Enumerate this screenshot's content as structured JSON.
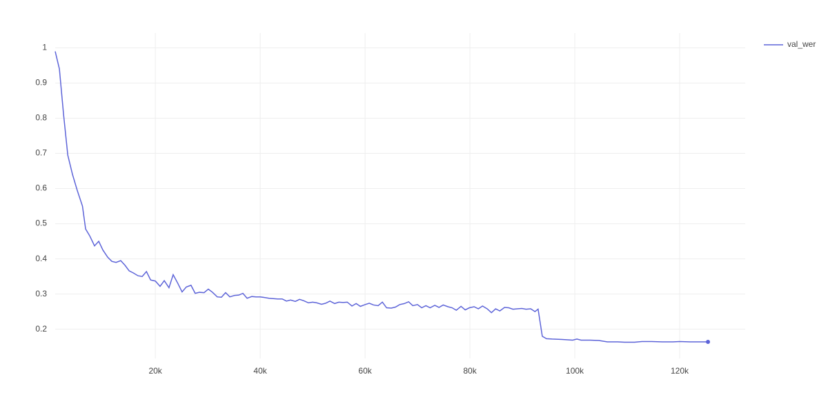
{
  "chart_data": {
    "type": "line",
    "x": [
      900,
      1700,
      2500,
      3300,
      4200,
      5100,
      6100,
      6700,
      7500,
      8400,
      9200,
      10000,
      10900,
      11700,
      12500,
      13400,
      14200,
      15000,
      15800,
      16700,
      17500,
      18300,
      19100,
      20000,
      20900,
      21700,
      22600,
      23400,
      24300,
      25100,
      25900,
      26800,
      27600,
      28400,
      29300,
      30100,
      30900,
      31800,
      32600,
      33400,
      34200,
      35100,
      35900,
      36700,
      37500,
      38400,
      39200,
      40000,
      40900,
      41700,
      42500,
      43300,
      44200,
      45000,
      45800,
      46700,
      47500,
      48300,
      49200,
      50000,
      50800,
      51700,
      52500,
      53300,
      54200,
      55000,
      55800,
      56600,
      57500,
      58300,
      59100,
      60000,
      60800,
      61600,
      62500,
      63300,
      64100,
      65000,
      65800,
      66600,
      67500,
      68300,
      69100,
      70000,
      70800,
      71600,
      72400,
      73300,
      74100,
      74900,
      75800,
      76600,
      77400,
      78300,
      79100,
      79900,
      80800,
      81600,
      82400,
      83300,
      84100,
      84900,
      85700,
      86600,
      87400,
      88200,
      89100,
      89900,
      90700,
      91600,
      92400,
      93000,
      93800,
      94600,
      95700,
      97600,
      99600,
      100400,
      101200,
      102900,
      104600,
      106200,
      108200,
      109500,
      111400,
      112800,
      114700,
      116700,
      118700,
      120000,
      122000,
      123300,
      125400
    ],
    "series": [
      {
        "name": "val_wer",
        "color": "#5c63d8",
        "values": [
          0.99,
          0.94,
          0.81,
          0.695,
          0.64,
          0.595,
          0.55,
          0.485,
          0.465,
          0.437,
          0.45,
          0.425,
          0.405,
          0.393,
          0.39,
          0.395,
          0.382,
          0.366,
          0.36,
          0.352,
          0.35,
          0.364,
          0.34,
          0.337,
          0.322,
          0.338,
          0.318,
          0.355,
          0.33,
          0.306,
          0.32,
          0.325,
          0.302,
          0.305,
          0.304,
          0.314,
          0.305,
          0.292,
          0.291,
          0.304,
          0.292,
          0.296,
          0.297,
          0.302,
          0.288,
          0.293,
          0.292,
          0.292,
          0.29,
          0.288,
          0.287,
          0.286,
          0.286,
          0.28,
          0.283,
          0.279,
          0.285,
          0.281,
          0.275,
          0.277,
          0.275,
          0.271,
          0.274,
          0.28,
          0.273,
          0.277,
          0.276,
          0.277,
          0.266,
          0.273,
          0.265,
          0.27,
          0.274,
          0.269,
          0.267,
          0.277,
          0.261,
          0.26,
          0.263,
          0.27,
          0.273,
          0.278,
          0.267,
          0.27,
          0.261,
          0.267,
          0.261,
          0.268,
          0.262,
          0.269,
          0.264,
          0.261,
          0.254,
          0.265,
          0.255,
          0.261,
          0.264,
          0.258,
          0.266,
          0.258,
          0.247,
          0.258,
          0.252,
          0.262,
          0.261,
          0.257,
          0.258,
          0.259,
          0.257,
          0.258,
          0.25,
          0.257,
          0.18,
          0.173,
          0.172,
          0.171,
          0.169,
          0.172,
          0.169,
          0.169,
          0.168,
          0.164,
          0.164,
          0.163,
          0.163,
          0.165,
          0.165,
          0.164,
          0.164,
          0.165,
          0.164,
          0.164,
          0.164
        ]
      }
    ],
    "xlim": [
      900,
      132500
    ],
    "xticks": [
      {
        "value": 20000,
        "label": "20k"
      },
      {
        "value": 40000,
        "label": "40k"
      },
      {
        "value": 60000,
        "label": "60k"
      },
      {
        "value": 80000,
        "label": "80k"
      },
      {
        "value": 100000,
        "label": "100k"
      },
      {
        "value": 120000,
        "label": "120k"
      }
    ],
    "ylim": [
      0.117,
      1.042
    ],
    "yticks": [
      0.2,
      0.3,
      0.4,
      0.5,
      0.6,
      0.7,
      0.8,
      0.9,
      1
    ],
    "grid": true,
    "legend": "right"
  }
}
